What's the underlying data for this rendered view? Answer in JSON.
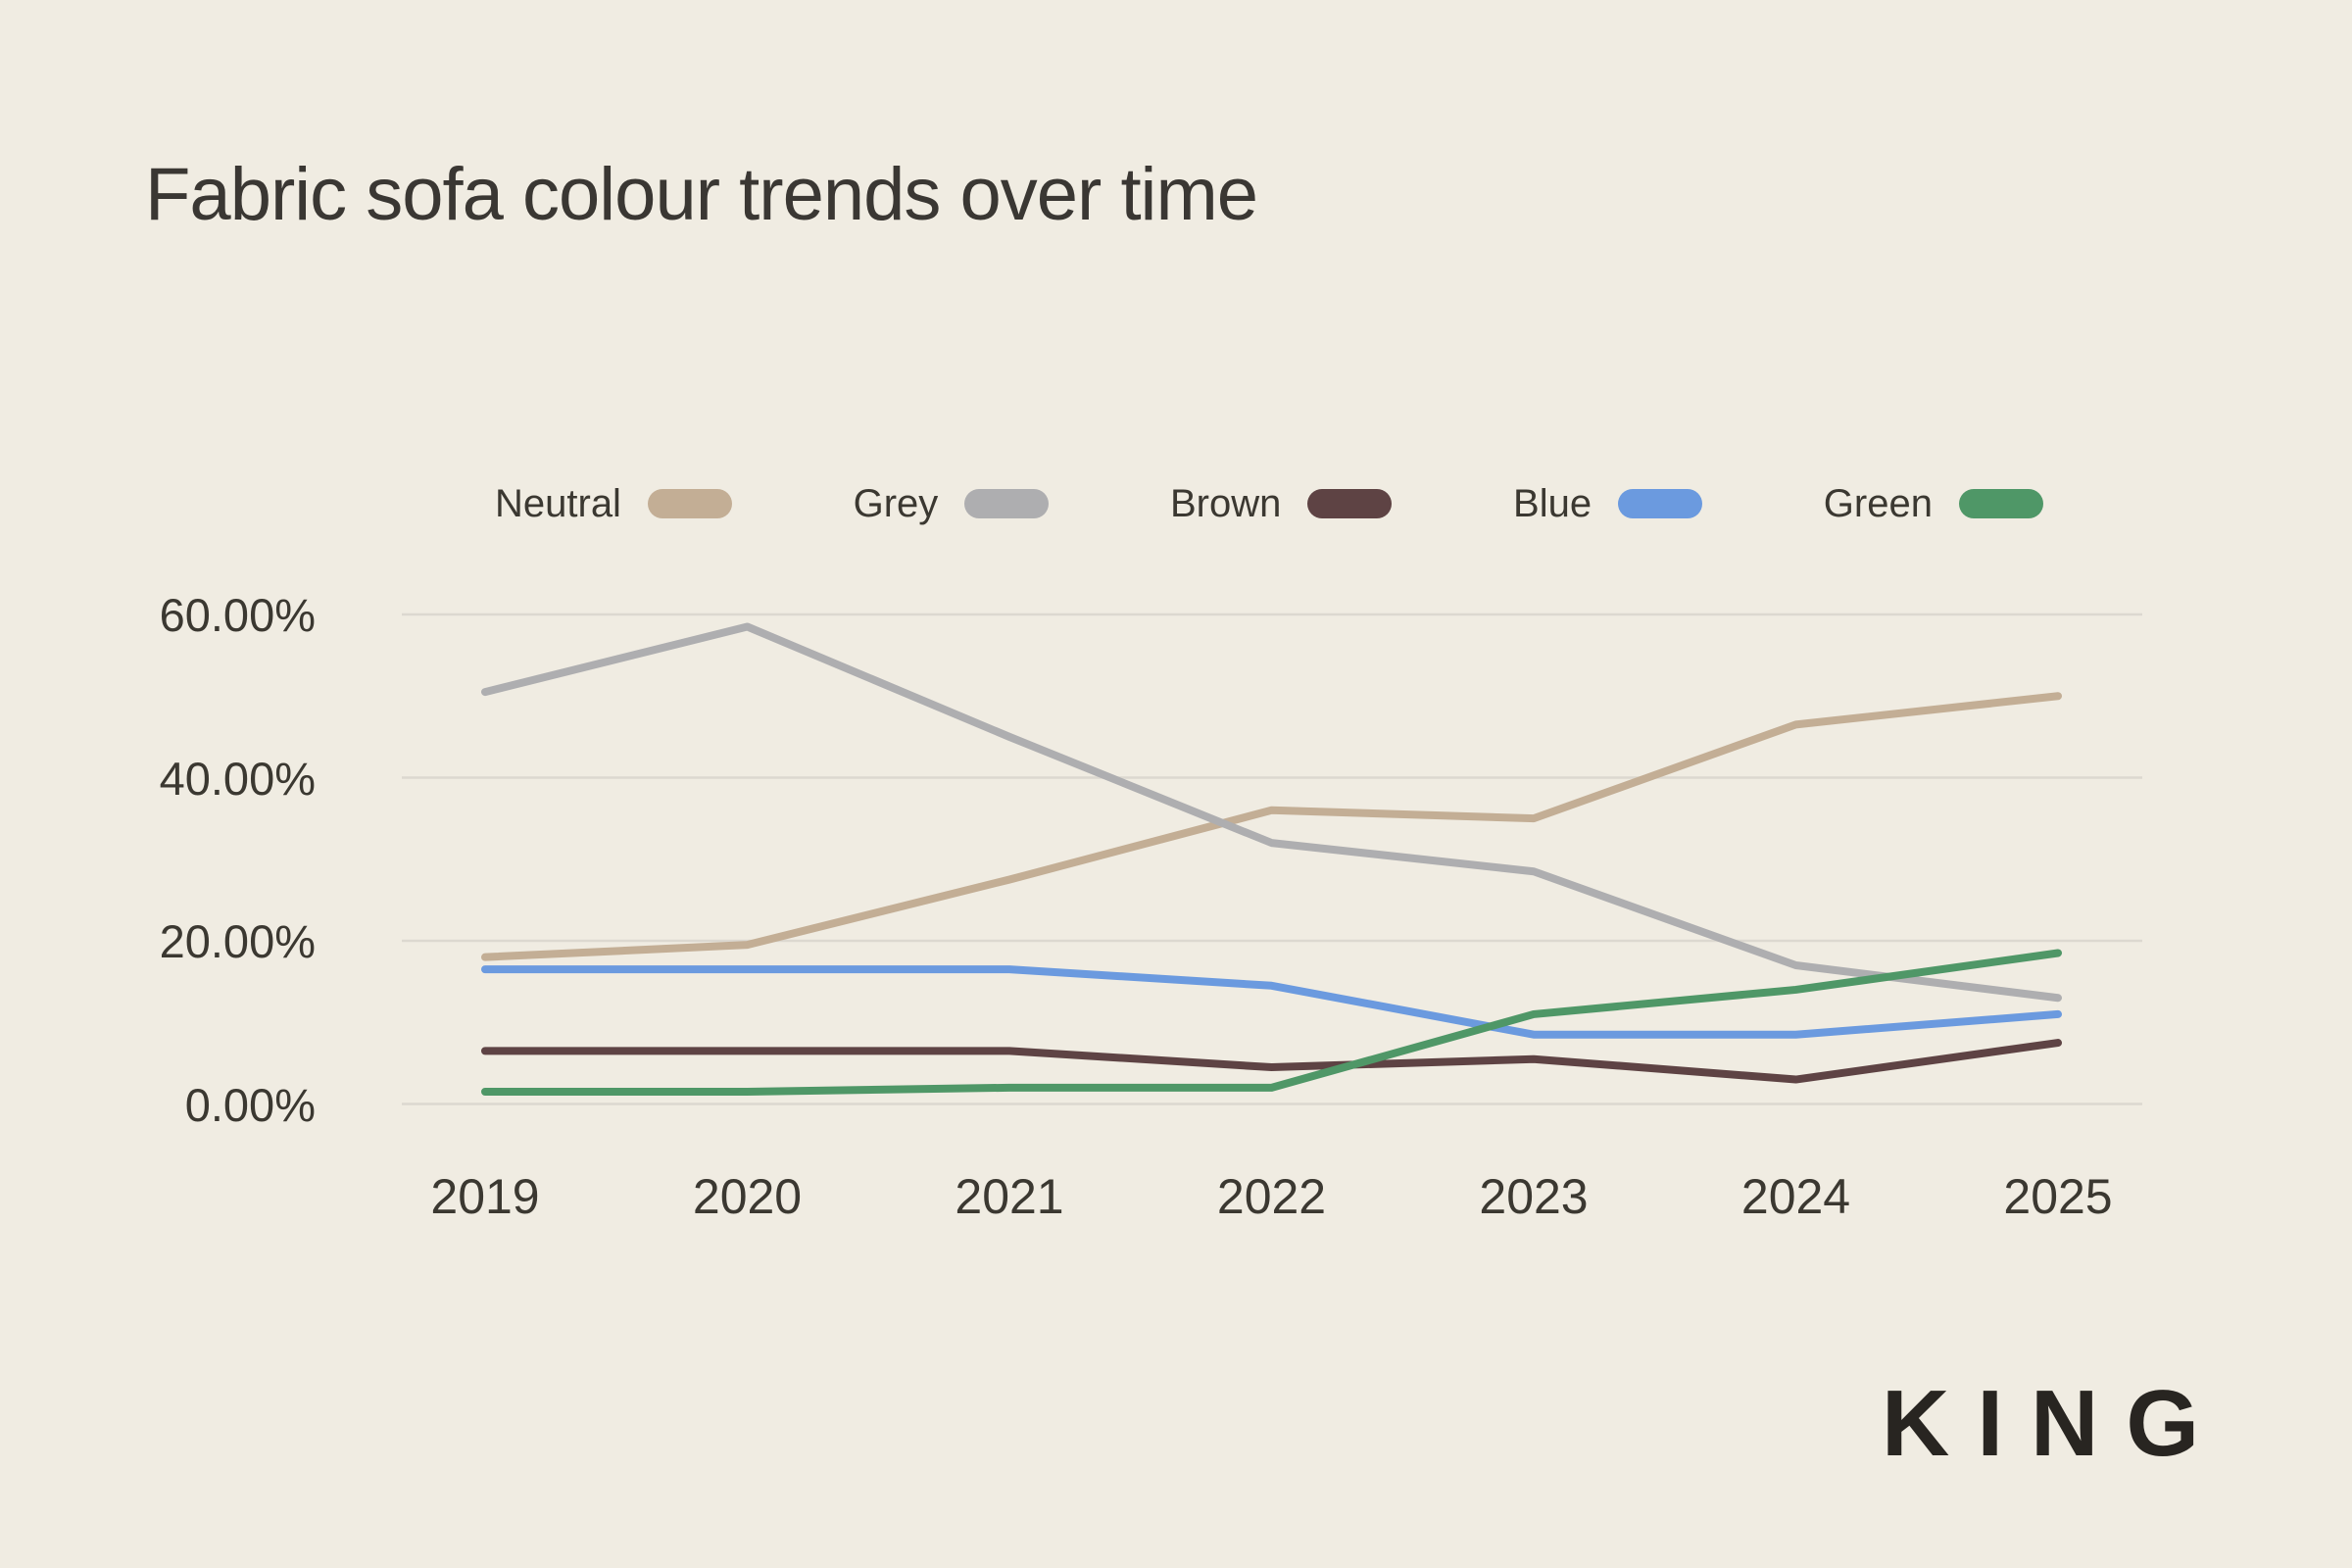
{
  "page": {
    "brand": "KING",
    "background_color": "#f0ece2",
    "text_color": "#3a3733"
  },
  "chart_data": {
    "type": "line",
    "title": "Fabric sofa colour trends over time",
    "xlabel": "",
    "ylabel": "",
    "categories": [
      "2019",
      "2020",
      "2021",
      "2022",
      "2023",
      "2024",
      "2025"
    ],
    "series": [
      {
        "name": "Neutral",
        "color": "#c3ae95",
        "values": [
          18,
          19.5,
          27.5,
          36,
          35,
          46.5,
          50
        ]
      },
      {
        "name": "Grey",
        "color": "#aeaeb0",
        "values": [
          50.5,
          58.5,
          45,
          32,
          28.5,
          17,
          13
        ]
      },
      {
        "name": "Brown",
        "color": "#5e4344",
        "values": [
          6.5,
          6.5,
          6.5,
          4.5,
          5.5,
          3,
          7.5
        ]
      },
      {
        "name": "Blue",
        "color": "#6b9adf",
        "values": [
          16.5,
          16.5,
          16.5,
          14.5,
          8.5,
          8.5,
          11
        ]
      },
      {
        "name": "Green",
        "color": "#4f9767",
        "values": [
          1.5,
          1.5,
          2,
          2,
          11,
          14,
          18.5
        ]
      }
    ],
    "ylim": [
      0,
      60
    ],
    "y_tick_values": [
      60,
      40,
      20,
      0
    ],
    "y_ticks": [
      "60.00%",
      "40.00%",
      "20.00%",
      "0.00%"
    ],
    "values_unit": "%",
    "grid": "horizontal",
    "gridline_color": "#dcd8d0",
    "legend_position": "top"
  }
}
